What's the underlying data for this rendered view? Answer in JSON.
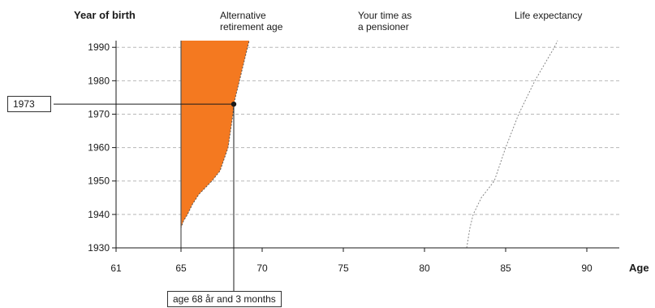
{
  "chart_data": {
    "type": "area",
    "y_axis_title": "Year of birth",
    "x_axis_title": "Age",
    "column_headers": {
      "retirement": [
        "Alternative",
        "retirement age"
      ],
      "pension_time": [
        "Your time as",
        "a pensioner"
      ],
      "life_expectancy": "Life expectancy"
    },
    "x_ticks": [
      61,
      65,
      70,
      75,
      80,
      85,
      90
    ],
    "y_ticks": [
      1930,
      1940,
      1950,
      1960,
      1970,
      1980,
      1990
    ],
    "xlim": [
      61,
      92
    ],
    "ylim": [
      1930,
      1992
    ],
    "grid": "horizontal dashed",
    "series": [
      {
        "name": "Alternative retirement age",
        "style": "filled",
        "color": "#f47920",
        "baseline_age": 65,
        "points": [
          [
            1930,
            65.0
          ],
          [
            1936,
            65.0
          ],
          [
            1938,
            65.15
          ],
          [
            1940,
            65.4
          ],
          [
            1943,
            65.7
          ],
          [
            1946,
            66.1
          ],
          [
            1950,
            66.9
          ],
          [
            1953,
            67.4
          ],
          [
            1960,
            67.9
          ],
          [
            1970,
            68.2
          ],
          [
            1973,
            68.25
          ],
          [
            1980,
            68.6
          ],
          [
            1992,
            69.2
          ]
        ]
      },
      {
        "name": "Life expectancy",
        "style": "dotted",
        "color": "#888888",
        "points": [
          [
            1930,
            82.6
          ],
          [
            1936,
            82.8
          ],
          [
            1940,
            83.0
          ],
          [
            1945,
            83.5
          ],
          [
            1950,
            84.3
          ],
          [
            1960,
            85.0
          ],
          [
            1970,
            85.8
          ],
          [
            1980,
            86.8
          ],
          [
            1990,
            88.0
          ],
          [
            1992,
            88.2
          ]
        ]
      }
    ],
    "marker": {
      "year": 1973,
      "age": 68.25,
      "year_label": "1973",
      "age_label": "age 68 år and 3 months"
    }
  }
}
